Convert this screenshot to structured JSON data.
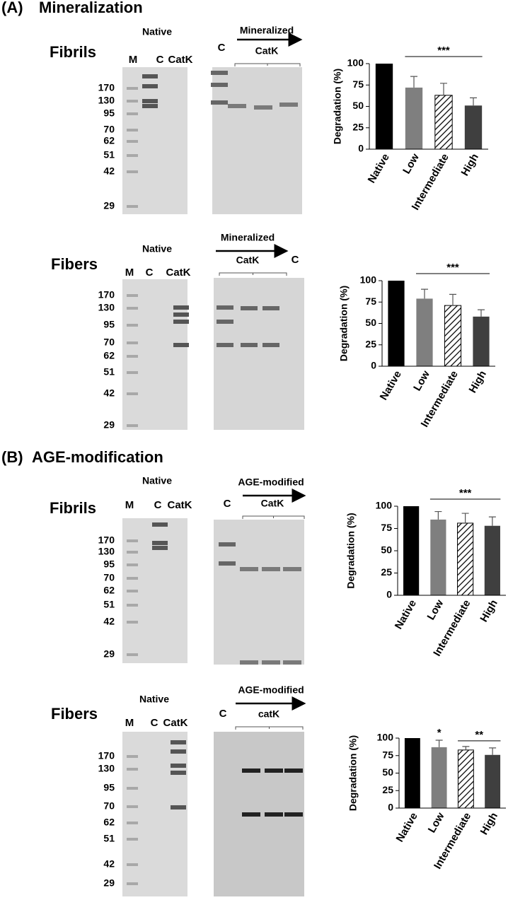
{
  "sections": [
    {
      "label": "(A)",
      "title": "Mineralization"
    },
    {
      "label": "(B)",
      "title": "AGE-modification"
    }
  ],
  "gels": [
    {
      "sample": "Fibrils",
      "native": "Native",
      "lanes": [
        "M",
        "C",
        "CatK"
      ],
      "modified": "Mineralized",
      "enzyme": "CatK",
      "control": "C",
      "markers": [
        170,
        130,
        95,
        70,
        62,
        51,
        42,
        29
      ]
    },
    {
      "sample": "Fibers",
      "native": "Native",
      "lanes": [
        "M",
        "C",
        "CatK"
      ],
      "modified": "Mineralized",
      "enzyme": "CatK",
      "control": "C",
      "markers": [
        170,
        130,
        95,
        70,
        62,
        51,
        42,
        29
      ]
    },
    {
      "sample": "Fibrils",
      "native": "Native",
      "lanes": [
        "M",
        "C",
        "CatK"
      ],
      "modified": "AGE-modified",
      "enzyme": "CatK",
      "control": "C",
      "markers": [
        170,
        130,
        95,
        70,
        62,
        51,
        42,
        29
      ]
    },
    {
      "sample": "Fibers",
      "native": "Native",
      "lanes": [
        "M",
        "C",
        "CatK"
      ],
      "modified": "AGE-modified",
      "enzyme": "catK",
      "control": "C",
      "markers": [
        170,
        130,
        95,
        70,
        62,
        51,
        42,
        29
      ]
    }
  ],
  "chart_data": [
    {
      "type": "bar",
      "y_label": "Degradation (%)",
      "categories": [
        "Native",
        "Low",
        "Intermediate",
        "High"
      ],
      "values": [
        100,
        72,
        63,
        51
      ],
      "errors": [
        null,
        13,
        14,
        9
      ],
      "colors": [
        "#000000",
        "#7f7f7f",
        "#ffffff",
        "#3f3f3f"
      ],
      "hatch": [
        false,
        false,
        true,
        false
      ],
      "ylim": [
        0,
        100
      ],
      "yticks": [
        0,
        25,
        50,
        75,
        100
      ],
      "annotations": [
        "***"
      ]
    },
    {
      "type": "bar",
      "y_label": "Degradation (%)",
      "categories": [
        "Native",
        "Low",
        "Intermediate",
        "High"
      ],
      "values": [
        100,
        79,
        71,
        58
      ],
      "errors": [
        null,
        11,
        13,
        8
      ],
      "colors": [
        "#000000",
        "#7f7f7f",
        "#ffffff",
        "#3f3f3f"
      ],
      "hatch": [
        false,
        false,
        true,
        false
      ],
      "ylim": [
        0,
        100
      ],
      "yticks": [
        0,
        25,
        50,
        75,
        100
      ],
      "annotations": [
        "***"
      ]
    },
    {
      "type": "bar",
      "y_label": "Degradation (%)",
      "categories": [
        "Native",
        "Low",
        "Intermediate",
        "High"
      ],
      "values": [
        100,
        85,
        81,
        78
      ],
      "errors": [
        null,
        9,
        11,
        10
      ],
      "colors": [
        "#000000",
        "#7f7f7f",
        "#ffffff",
        "#3f3f3f"
      ],
      "hatch": [
        false,
        false,
        true,
        false
      ],
      "ylim": [
        0,
        100
      ],
      "yticks": [
        0,
        25,
        50,
        75,
        100
      ],
      "annotations": [
        "***"
      ]
    },
    {
      "type": "bar",
      "y_label": "Degradation (%)",
      "categories": [
        "Native",
        "Low",
        "Intermediate",
        "High"
      ],
      "values": [
        100,
        87,
        83,
        76
      ],
      "errors": [
        null,
        10,
        5,
        10
      ],
      "colors": [
        "#000000",
        "#7f7f7f",
        "#ffffff",
        "#3f3f3f"
      ],
      "hatch": [
        false,
        false,
        true,
        false
      ],
      "ylim": [
        0,
        100
      ],
      "yticks": [
        0,
        25,
        50,
        75,
        100
      ],
      "annotations": [
        "*",
        "**"
      ]
    }
  ]
}
